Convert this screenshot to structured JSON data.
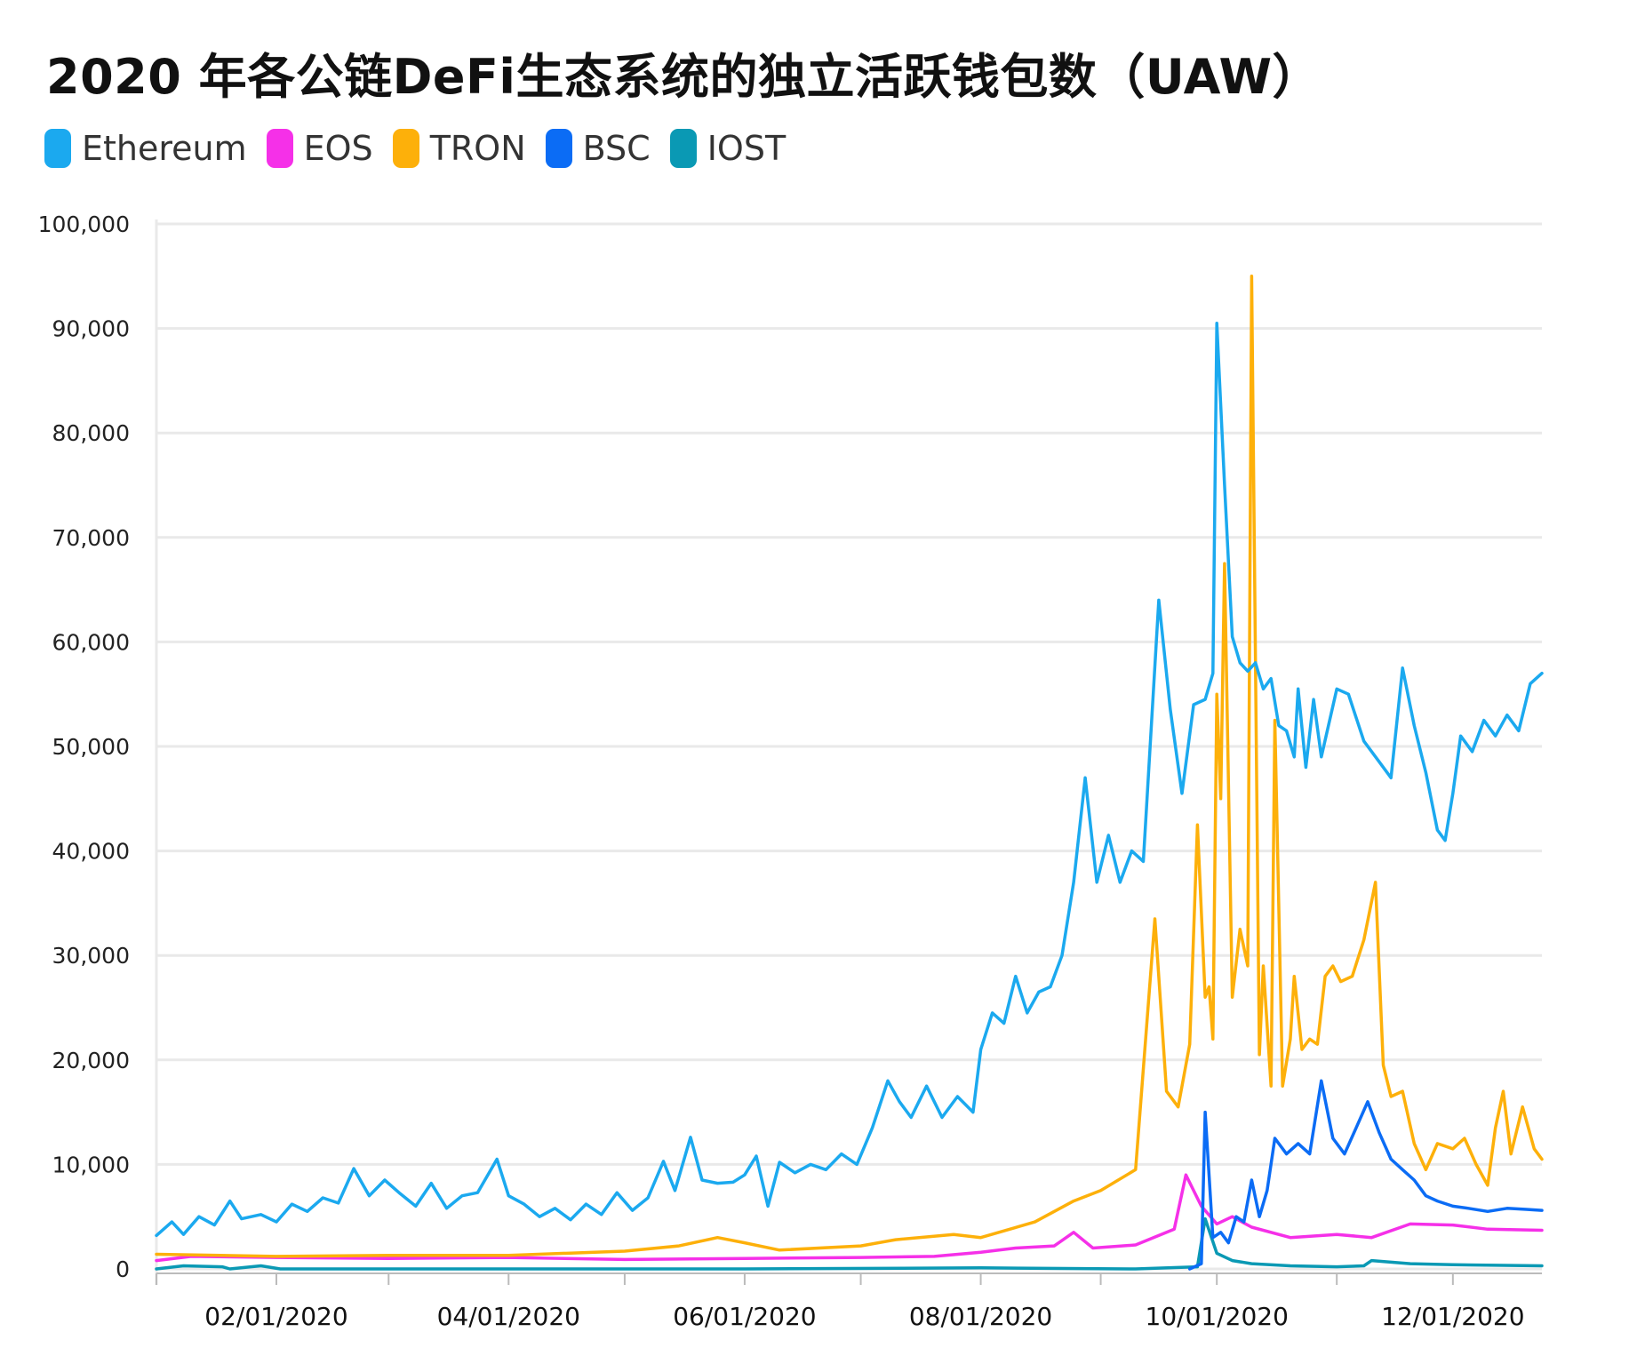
{
  "chart_data": {
    "type": "line",
    "title": "2020 年各公链DeFi生态系统的独立活跃钱包数（UAW）",
    "legend_position": "top-left",
    "grid": true,
    "ylim": [
      0,
      100000
    ],
    "yticks": [
      0,
      10000,
      20000,
      30000,
      40000,
      50000,
      60000,
      70000,
      80000,
      90000,
      100000
    ],
    "ytick_labels": [
      "0",
      "10,000",
      "20,000",
      "30,000",
      "40,000",
      "50,000",
      "60,000",
      "70,000",
      "80,000",
      "90,000",
      "100,000"
    ],
    "xlim": [
      "2020-01-01",
      "2020-12-24"
    ],
    "xticks": [
      "2020-02-01",
      "2020-04-01",
      "2020-06-01",
      "2020-08-01",
      "2020-10-01",
      "2020-12-01"
    ],
    "xtick_labels": [
      "02/01/2020",
      "04/01/2020",
      "06/01/2020",
      "08/01/2020",
      "10/01/2020",
      "12/01/2020"
    ],
    "series": [
      {
        "name": "Ethereum",
        "color": "#1ba9ef",
        "points": [
          [
            "2020-01-01",
            3200
          ],
          [
            "2020-01-05",
            4500
          ],
          [
            "2020-01-08",
            3300
          ],
          [
            "2020-01-12",
            5000
          ],
          [
            "2020-01-16",
            4200
          ],
          [
            "2020-01-20",
            6500
          ],
          [
            "2020-01-23",
            4800
          ],
          [
            "2020-01-28",
            5200
          ],
          [
            "2020-02-01",
            4500
          ],
          [
            "2020-02-05",
            6200
          ],
          [
            "2020-02-09",
            5500
          ],
          [
            "2020-02-13",
            6800
          ],
          [
            "2020-02-17",
            6300
          ],
          [
            "2020-02-21",
            9600
          ],
          [
            "2020-02-25",
            7000
          ],
          [
            "2020-02-29",
            8500
          ],
          [
            "2020-03-04",
            7200
          ],
          [
            "2020-03-08",
            6000
          ],
          [
            "2020-03-12",
            8200
          ],
          [
            "2020-03-16",
            5800
          ],
          [
            "2020-03-20",
            7000
          ],
          [
            "2020-03-24",
            7300
          ],
          [
            "2020-03-29",
            10500
          ],
          [
            "2020-04-01",
            7000
          ],
          [
            "2020-04-05",
            6200
          ],
          [
            "2020-04-09",
            5000
          ],
          [
            "2020-04-13",
            5800
          ],
          [
            "2020-04-17",
            4700
          ],
          [
            "2020-04-21",
            6200
          ],
          [
            "2020-04-25",
            5200
          ],
          [
            "2020-04-29",
            7300
          ],
          [
            "2020-05-03",
            5600
          ],
          [
            "2020-05-07",
            6800
          ],
          [
            "2020-05-11",
            10300
          ],
          [
            "2020-05-14",
            7500
          ],
          [
            "2020-05-18",
            12600
          ],
          [
            "2020-05-21",
            8500
          ],
          [
            "2020-05-25",
            8200
          ],
          [
            "2020-05-29",
            8300
          ],
          [
            "2020-06-01",
            9000
          ],
          [
            "2020-06-04",
            10800
          ],
          [
            "2020-06-07",
            6000
          ],
          [
            "2020-06-10",
            10200
          ],
          [
            "2020-06-14",
            9200
          ],
          [
            "2020-06-18",
            10000
          ],
          [
            "2020-06-22",
            9500
          ],
          [
            "2020-06-26",
            11000
          ],
          [
            "2020-06-30",
            10000
          ],
          [
            "2020-07-04",
            13500
          ],
          [
            "2020-07-08",
            18000
          ],
          [
            "2020-07-11",
            16000
          ],
          [
            "2020-07-14",
            14500
          ],
          [
            "2020-07-18",
            17500
          ],
          [
            "2020-07-22",
            14500
          ],
          [
            "2020-07-26",
            16500
          ],
          [
            "2020-07-30",
            15000
          ],
          [
            "2020-08-01",
            21000
          ],
          [
            "2020-08-04",
            24500
          ],
          [
            "2020-08-07",
            23500
          ],
          [
            "2020-08-10",
            28000
          ],
          [
            "2020-08-13",
            24500
          ],
          [
            "2020-08-16",
            26500
          ],
          [
            "2020-08-19",
            27000
          ],
          [
            "2020-08-22",
            30000
          ],
          [
            "2020-08-25",
            37000
          ],
          [
            "2020-08-28",
            47000
          ],
          [
            "2020-08-31",
            37000
          ],
          [
            "2020-09-03",
            41500
          ],
          [
            "2020-09-06",
            37000
          ],
          [
            "2020-09-09",
            40000
          ],
          [
            "2020-09-12",
            39000
          ],
          [
            "2020-09-16",
            64000
          ],
          [
            "2020-09-19",
            53500
          ],
          [
            "2020-09-22",
            45500
          ],
          [
            "2020-09-25",
            54000
          ],
          [
            "2020-09-28",
            54500
          ],
          [
            "2020-09-30",
            57000
          ],
          [
            "2020-10-01",
            90500
          ],
          [
            "2020-10-03",
            75000
          ],
          [
            "2020-10-05",
            60500
          ],
          [
            "2020-10-07",
            58000
          ],
          [
            "2020-10-09",
            57200
          ],
          [
            "2020-10-11",
            58000
          ],
          [
            "2020-10-13",
            55500
          ],
          [
            "2020-10-15",
            56500
          ],
          [
            "2020-10-17",
            52000
          ],
          [
            "2020-10-19",
            51500
          ],
          [
            "2020-10-21",
            49000
          ],
          [
            "2020-10-22",
            55500
          ],
          [
            "2020-10-24",
            48000
          ],
          [
            "2020-10-26",
            54500
          ],
          [
            "2020-10-28",
            49000
          ],
          [
            "2020-11-01",
            55500
          ],
          [
            "2020-11-04",
            55000
          ],
          [
            "2020-11-08",
            50500
          ],
          [
            "2020-11-12",
            48500
          ],
          [
            "2020-11-15",
            47000
          ],
          [
            "2020-11-18",
            57500
          ],
          [
            "2020-11-21",
            52000
          ],
          [
            "2020-11-24",
            47500
          ],
          [
            "2020-11-27",
            42000
          ],
          [
            "2020-11-29",
            41000
          ],
          [
            "2020-12-01",
            45500
          ],
          [
            "2020-12-03",
            51000
          ],
          [
            "2020-12-06",
            49500
          ],
          [
            "2020-12-09",
            52500
          ],
          [
            "2020-12-12",
            51000
          ],
          [
            "2020-12-15",
            53000
          ],
          [
            "2020-12-18",
            51500
          ],
          [
            "2020-12-21",
            56000
          ],
          [
            "2020-12-24",
            57000
          ]
        ]
      },
      {
        "name": "EOS",
        "color": "#f530e8",
        "points": [
          [
            "2020-01-01",
            800
          ],
          [
            "2020-01-10",
            1200
          ],
          [
            "2020-02-01",
            1100
          ],
          [
            "2020-03-01",
            1000
          ],
          [
            "2020-04-01",
            1100
          ],
          [
            "2020-05-01",
            900
          ],
          [
            "2020-06-01",
            1000
          ],
          [
            "2020-07-01",
            1100
          ],
          [
            "2020-07-20",
            1200
          ],
          [
            "2020-08-01",
            1600
          ],
          [
            "2020-08-10",
            2000
          ],
          [
            "2020-08-20",
            2200
          ],
          [
            "2020-08-25",
            3500
          ],
          [
            "2020-08-30",
            2000
          ],
          [
            "2020-09-10",
            2300
          ],
          [
            "2020-09-20",
            3800
          ],
          [
            "2020-09-23",
            9000
          ],
          [
            "2020-09-27",
            6000
          ],
          [
            "2020-10-01",
            4300
          ],
          [
            "2020-10-05",
            5000
          ],
          [
            "2020-10-10",
            4000
          ],
          [
            "2020-10-20",
            3000
          ],
          [
            "2020-11-01",
            3300
          ],
          [
            "2020-11-10",
            3000
          ],
          [
            "2020-11-20",
            4300
          ],
          [
            "2020-12-01",
            4200
          ],
          [
            "2020-12-10",
            3800
          ],
          [
            "2020-12-24",
            3700
          ]
        ]
      },
      {
        "name": "TRON",
        "color": "#fdb00a",
        "points": [
          [
            "2020-01-01",
            1400
          ],
          [
            "2020-02-01",
            1200
          ],
          [
            "2020-03-01",
            1300
          ],
          [
            "2020-04-01",
            1300
          ],
          [
            "2020-05-01",
            1700
          ],
          [
            "2020-05-15",
            2200
          ],
          [
            "2020-05-25",
            3000
          ],
          [
            "2020-06-01",
            2500
          ],
          [
            "2020-06-10",
            1800
          ],
          [
            "2020-07-01",
            2200
          ],
          [
            "2020-07-10",
            2800
          ],
          [
            "2020-07-25",
            3300
          ],
          [
            "2020-08-01",
            3000
          ],
          [
            "2020-08-15",
            4500
          ],
          [
            "2020-08-25",
            6500
          ],
          [
            "2020-09-01",
            7500
          ],
          [
            "2020-09-10",
            9500
          ],
          [
            "2020-09-15",
            33500
          ],
          [
            "2020-09-18",
            17000
          ],
          [
            "2020-09-21",
            15500
          ],
          [
            "2020-09-24",
            21500
          ],
          [
            "2020-09-26",
            42500
          ],
          [
            "2020-09-28",
            26000
          ],
          [
            "2020-09-29",
            27000
          ],
          [
            "2020-09-30",
            22000
          ],
          [
            "2020-10-01",
            55000
          ],
          [
            "2020-10-02",
            45000
          ],
          [
            "2020-10-03",
            67500
          ],
          [
            "2020-10-05",
            26000
          ],
          [
            "2020-10-07",
            32500
          ],
          [
            "2020-10-09",
            29000
          ],
          [
            "2020-10-10",
            95000
          ],
          [
            "2020-10-12",
            20500
          ],
          [
            "2020-10-13",
            29000
          ],
          [
            "2020-10-15",
            17500
          ],
          [
            "2020-10-16",
            52500
          ],
          [
            "2020-10-18",
            17500
          ],
          [
            "2020-10-20",
            22000
          ],
          [
            "2020-10-21",
            28000
          ],
          [
            "2020-10-23",
            21000
          ],
          [
            "2020-10-25",
            22000
          ],
          [
            "2020-10-27",
            21500
          ],
          [
            "2020-10-29",
            28000
          ],
          [
            "2020-10-31",
            29000
          ],
          [
            "2020-11-02",
            27500
          ],
          [
            "2020-11-05",
            28000
          ],
          [
            "2020-11-08",
            31500
          ],
          [
            "2020-11-11",
            37000
          ],
          [
            "2020-11-13",
            19500
          ],
          [
            "2020-11-15",
            16500
          ],
          [
            "2020-11-18",
            17000
          ],
          [
            "2020-11-21",
            12000
          ],
          [
            "2020-11-24",
            9500
          ],
          [
            "2020-11-27",
            12000
          ],
          [
            "2020-12-01",
            11500
          ],
          [
            "2020-12-04",
            12500
          ],
          [
            "2020-12-07",
            10000
          ],
          [
            "2020-12-10",
            8000
          ],
          [
            "2020-12-12",
            13500
          ],
          [
            "2020-12-14",
            17000
          ],
          [
            "2020-12-16",
            11000
          ],
          [
            "2020-12-19",
            15500
          ],
          [
            "2020-12-22",
            11500
          ],
          [
            "2020-12-24",
            10500
          ]
        ]
      },
      {
        "name": "BSC",
        "color": "#0b6cf5",
        "points": [
          [
            "2020-09-24",
            0
          ],
          [
            "2020-09-27",
            500
          ],
          [
            "2020-09-28",
            15000
          ],
          [
            "2020-09-30",
            3000
          ],
          [
            "2020-10-02",
            3500
          ],
          [
            "2020-10-04",
            2500
          ],
          [
            "2020-10-06",
            5000
          ],
          [
            "2020-10-08",
            4500
          ],
          [
            "2020-10-10",
            8500
          ],
          [
            "2020-10-12",
            5000
          ],
          [
            "2020-10-14",
            7500
          ],
          [
            "2020-10-16",
            12500
          ],
          [
            "2020-10-19",
            11000
          ],
          [
            "2020-10-22",
            12000
          ],
          [
            "2020-10-25",
            11000
          ],
          [
            "2020-10-28",
            18000
          ],
          [
            "2020-10-31",
            12500
          ],
          [
            "2020-11-03",
            11000
          ],
          [
            "2020-11-06",
            13500
          ],
          [
            "2020-11-09",
            16000
          ],
          [
            "2020-11-12",
            13000
          ],
          [
            "2020-11-15",
            10500
          ],
          [
            "2020-11-18",
            9500
          ],
          [
            "2020-11-21",
            8500
          ],
          [
            "2020-11-24",
            7000
          ],
          [
            "2020-11-27",
            6500
          ],
          [
            "2020-12-01",
            6000
          ],
          [
            "2020-12-05",
            5800
          ],
          [
            "2020-12-10",
            5500
          ],
          [
            "2020-12-15",
            5800
          ],
          [
            "2020-12-20",
            5700
          ],
          [
            "2020-12-24",
            5600
          ]
        ]
      },
      {
        "name": "IOST",
        "color": "#0a99b4",
        "points": [
          [
            "2020-01-01",
            0
          ],
          [
            "2020-01-08",
            300
          ],
          [
            "2020-01-18",
            200
          ],
          [
            "2020-01-20",
            0
          ],
          [
            "2020-01-28",
            300
          ],
          [
            "2020-02-02",
            0
          ],
          [
            "2020-04-01",
            0
          ],
          [
            "2020-06-01",
            0
          ],
          [
            "2020-08-01",
            100
          ],
          [
            "2020-09-10",
            0
          ],
          [
            "2020-09-26",
            200
          ],
          [
            "2020-09-28",
            4800
          ],
          [
            "2020-10-01",
            1500
          ],
          [
            "2020-10-05",
            800
          ],
          [
            "2020-10-10",
            500
          ],
          [
            "2020-10-20",
            300
          ],
          [
            "2020-11-01",
            200
          ],
          [
            "2020-11-08",
            300
          ],
          [
            "2020-11-10",
            800
          ],
          [
            "2020-11-20",
            500
          ],
          [
            "2020-12-01",
            400
          ],
          [
            "2020-12-24",
            300
          ]
        ]
      }
    ]
  }
}
